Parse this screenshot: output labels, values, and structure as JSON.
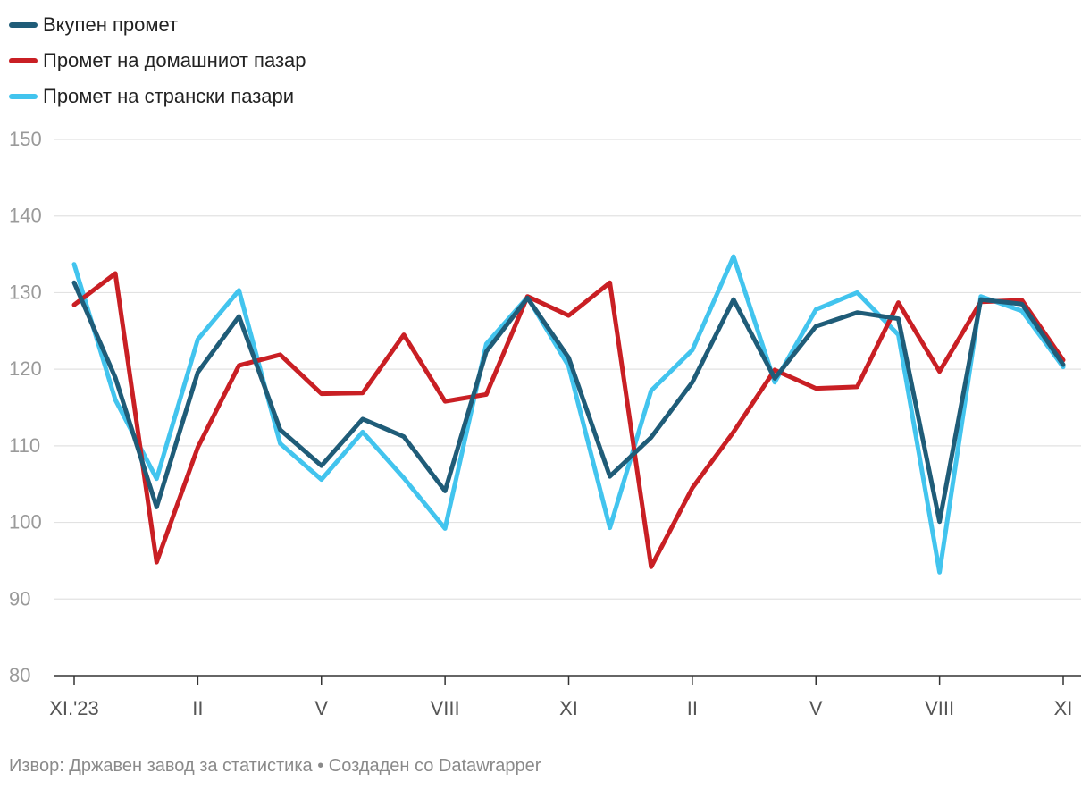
{
  "chart_data": {
    "type": "line",
    "ylim": [
      80,
      150
    ],
    "yticks": [
      80,
      90,
      100,
      110,
      120,
      130,
      140,
      150
    ],
    "x_tick_labels": [
      "XI.'23",
      "II",
      "V",
      "VIII",
      "XI",
      "II",
      "V",
      "VIII",
      "XI"
    ],
    "x_tick_indices": [
      0,
      3,
      6,
      9,
      12,
      15,
      18,
      21,
      24
    ],
    "x_count": 25,
    "grid": true,
    "legend_position": "top-left",
    "series": [
      {
        "name": "Вкупен промет",
        "color": "#1f5c78",
        "values": [
          131.3,
          118.9,
          102.0,
          119.6,
          126.9,
          112.1,
          107.4,
          113.5,
          111.2,
          104.1,
          122.3,
          129.3,
          121.5,
          106.0,
          111.1,
          118.3,
          129.1,
          118.8,
          125.6,
          127.4,
          126.6,
          100.1,
          129.1,
          128.5,
          120.6
        ]
      },
      {
        "name": "Промет на домашниот пазар",
        "color": "#c91f24",
        "values": [
          128.4,
          132.5,
          94.8,
          109.8,
          120.5,
          121.9,
          116.8,
          116.9,
          124.5,
          115.8,
          116.7,
          129.5,
          127.0,
          131.3,
          94.2,
          104.5,
          111.8,
          119.9,
          117.5,
          117.7,
          128.7,
          119.7,
          128.8,
          129.0,
          121.2
        ]
      },
      {
        "name": "Промет на странски пазари",
        "color": "#42c4ee",
        "values": [
          133.7,
          116.0,
          105.7,
          123.9,
          130.3,
          110.3,
          105.6,
          111.8,
          105.8,
          99.2,
          123.3,
          129.4,
          120.4,
          99.3,
          117.2,
          122.5,
          134.7,
          118.3,
          127.8,
          130.0,
          124.5,
          93.5,
          129.5,
          127.6,
          120.3
        ]
      }
    ]
  },
  "footer": {
    "text": "Извор: Државен завод за статистика • Создаден со Datawrapper"
  }
}
